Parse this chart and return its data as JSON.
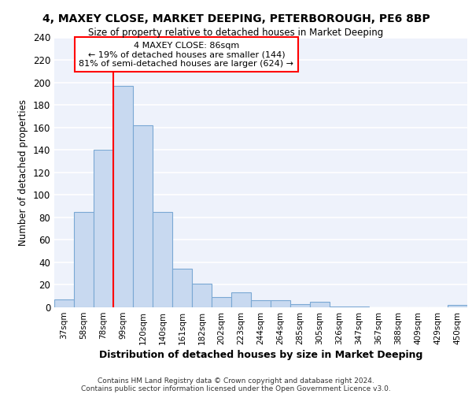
{
  "title1": "4, MAXEY CLOSE, MARKET DEEPING, PETERBOROUGH, PE6 8BP",
  "title2": "Size of property relative to detached houses in Market Deeping",
  "xlabel": "Distribution of detached houses by size in Market Deeping",
  "ylabel": "Number of detached properties",
  "bin_labels": [
    "37sqm",
    "58sqm",
    "78sqm",
    "99sqm",
    "120sqm",
    "140sqm",
    "161sqm",
    "182sqm",
    "202sqm",
    "223sqm",
    "244sqm",
    "264sqm",
    "285sqm",
    "305sqm",
    "326sqm",
    "347sqm",
    "367sqm",
    "388sqm",
    "409sqm",
    "429sqm",
    "450sqm"
  ],
  "bar_heights": [
    7,
    85,
    140,
    197,
    162,
    85,
    34,
    21,
    9,
    13,
    6,
    6,
    3,
    5,
    1,
    1,
    0,
    0,
    0,
    0,
    2
  ],
  "bar_color": "#c8d9f0",
  "bar_edge_color": "#7aa8d4",
  "red_line_x": 2.5,
  "annotation_title": "4 MAXEY CLOSE: 86sqm",
  "annotation_line1": "← 19% of detached houses are smaller (144)",
  "annotation_line2": "81% of semi-detached houses are larger (624) →",
  "footer1": "Contains HM Land Registry data © Crown copyright and database right 2024.",
  "footer2": "Contains public sector information licensed under the Open Government Licence v3.0.",
  "ylim": [
    0,
    240
  ],
  "yticks": [
    0,
    20,
    40,
    60,
    80,
    100,
    120,
    140,
    160,
    180,
    200,
    220,
    240
  ],
  "bg_color": "#eef2fb",
  "grid_color": "#ffffff"
}
